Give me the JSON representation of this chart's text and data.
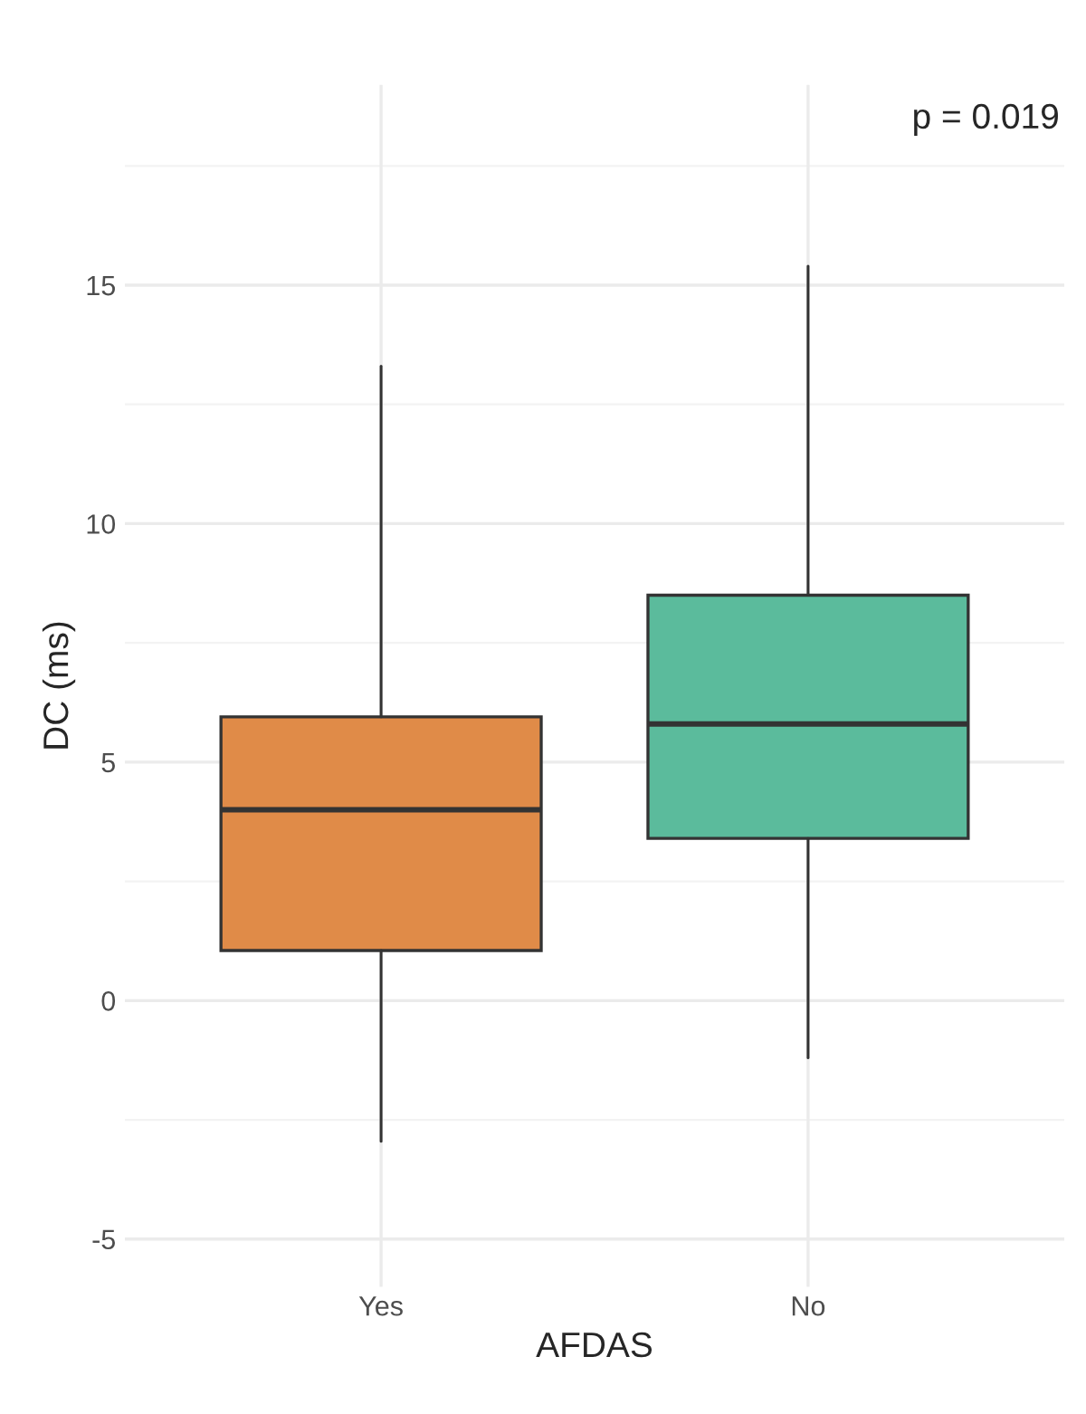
{
  "chart_data": {
    "type": "box",
    "categories": [
      "Yes",
      "No"
    ],
    "xlabel": "AFDAS",
    "ylabel": "DC (ms)",
    "colors": [
      "#e08b48",
      "#5bbb9c"
    ],
    "boxes": [
      {
        "low": -2.95,
        "q1": 1.05,
        "median": 4.0,
        "q3": 5.95,
        "high": 13.3
      },
      {
        "low": -1.2,
        "q1": 3.4,
        "median": 5.8,
        "q3": 8.5,
        "high": 15.4
      }
    ],
    "ylim": [
      -6,
      19.2
    ],
    "yticks": [
      -5,
      0,
      5,
      10,
      15
    ],
    "grid": true,
    "annotations": [
      "p = 0.019"
    ]
  }
}
